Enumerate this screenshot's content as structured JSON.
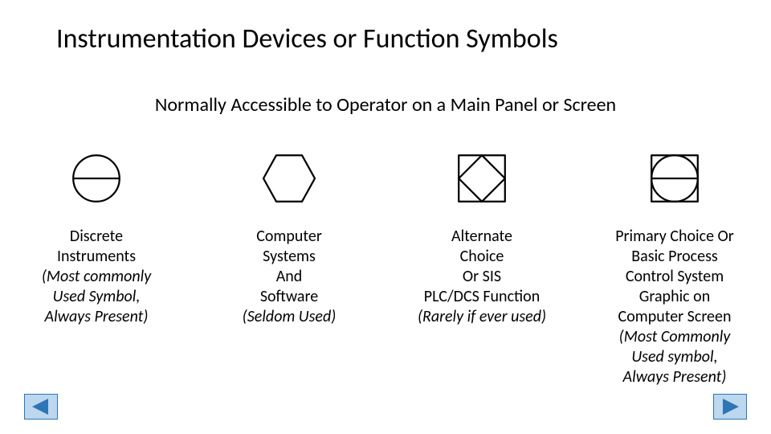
{
  "title": "Instrumentation Devices or Function Symbols",
  "subtitle": "Normally Accessible to Operator on a Main Panel or Screen",
  "symbol_stroke": "#000000",
  "symbol_stroke_width": 2.8,
  "symbol_size": 80,
  "nav_button": {
    "fill": "#bdd7ee",
    "stroke": "#2e75b6",
    "stroke_width": 1
  },
  "items": [
    {
      "type": "circle-hline",
      "line1": "Discrete",
      "line2": "Instruments",
      "italic1": "(Most commonly",
      "italic2": "Used Symbol,",
      "italic3": "Always Present)"
    },
    {
      "type": "hexagon",
      "line1": "Computer",
      "line2": "Systems",
      "line3": "And",
      "line4": "Software",
      "italic1": "(Seldom Used)"
    },
    {
      "type": "diamond-in-square",
      "line1": "Alternate",
      "line2": "Choice",
      "line3": "Or SIS",
      "line4": "PLC/DCS Function",
      "italic1": "(Rarely if ever used)"
    },
    {
      "type": "circle-in-square-hline",
      "line1": "Primary Choice Or",
      "line2": "Basic Process",
      "line3": "Control System",
      "line4": "Graphic on",
      "line5": "Computer Screen",
      "italic1": "(Most Commonly",
      "italic2": "Used symbol,",
      "italic3": "Always Present)"
    }
  ]
}
